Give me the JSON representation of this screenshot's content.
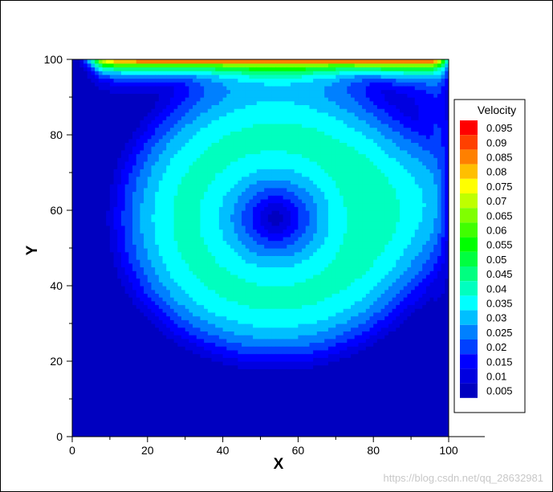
{
  "chart_data": {
    "type": "heatmap",
    "title": "",
    "xlabel": "X",
    "ylabel": "Y",
    "xlim": [
      0,
      100
    ],
    "ylim": [
      0,
      100
    ],
    "x_ticks": [
      "0",
      "20",
      "40",
      "60",
      "80",
      "100"
    ],
    "y_ticks": [
      "0",
      "20",
      "40",
      "60",
      "80",
      "100"
    ],
    "legend": {
      "title": "Velocity",
      "placement": "right",
      "levels": [
        "0.095",
        "0.09",
        "0.085",
        "0.08",
        "0.075",
        "0.07",
        "0.065",
        "0.06",
        "0.055",
        "0.05",
        "0.045",
        "0.04",
        "0.035",
        "0.03",
        "0.025",
        "0.02",
        "0.015",
        "0.01",
        "0.005"
      ],
      "colors": [
        "#ff0000",
        "#ff4000",
        "#ff8000",
        "#ffbf00",
        "#ffff00",
        "#bfff00",
        "#80ff00",
        "#40ff00",
        "#00ff00",
        "#00ff40",
        "#00ff80",
        "#00ffbf",
        "#00ffff",
        "#00bfff",
        "#0080ff",
        "#0040ff",
        "#0000ff",
        "#0000e0",
        "#0000c0"
      ]
    },
    "vortex_center": {
      "x": 54,
      "y": 58
    },
    "lid_velocity_max": 0.095
  },
  "watermark": "https://blog.csdn.net/qq_28632981"
}
